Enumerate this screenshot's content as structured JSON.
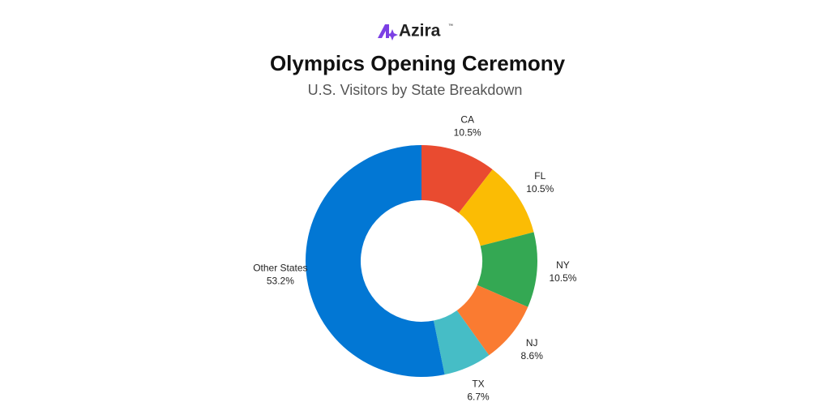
{
  "brand": "Azira",
  "brand_mark": "™",
  "chart_data": {
    "type": "donut",
    "title": "Olympics Opening Ceremony",
    "subtitle": "U.S. Visitors by State Breakdown",
    "categories": [
      "CA",
      "FL",
      "NY",
      "NJ",
      "TX",
      "Other States"
    ],
    "values": [
      10.5,
      10.5,
      10.5,
      8.6,
      6.7,
      53.2
    ],
    "value_labels": [
      "10.5%",
      "10.5%",
      "10.5%",
      "8.6%",
      "6.7%",
      "53.2%"
    ],
    "colors": [
      "#e94b30",
      "#fbbc04",
      "#34a853",
      "#fa7b31",
      "#46bdc6",
      "#0277d4"
    ]
  }
}
